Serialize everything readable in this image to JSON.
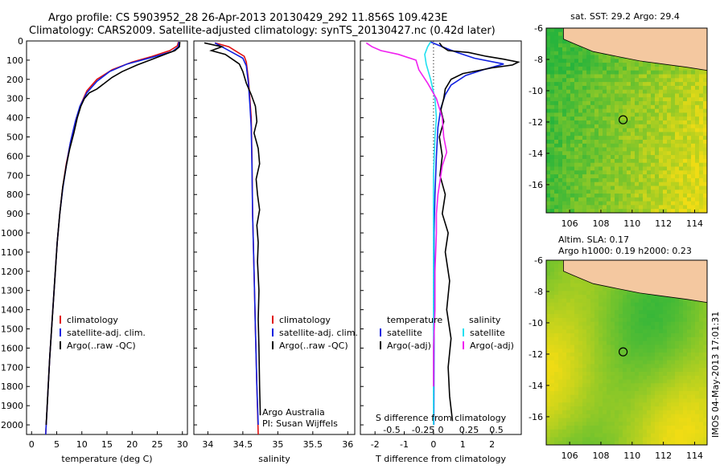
{
  "header": {
    "line1": "Argo profile: CS 5903952_28 26-Apr-2013 20130429_292 11.856S 109.423E",
    "line2": "Climatology: CARS2009. Satellite-adjusted climatology: synTS_20130427.nc (0.42d later)"
  },
  "side_note": "IMOS 04-May-2013 17:01:31",
  "colors": {
    "clim": "#e01010",
    "sat": "#1020e0",
    "argo": "#000000",
    "cyan": "#20e0f0",
    "magenta": "#f020f0",
    "land": "#f4c8a0"
  },
  "chart_data": [
    {
      "type": "line",
      "id": "temperature",
      "xlabel": "temperature (deg C)",
      "ylabel": "",
      "xlim": [
        -1,
        31
      ],
      "ylim": [
        2050,
        0
      ],
      "xticks": [
        0,
        5,
        10,
        15,
        20,
        25,
        30
      ],
      "yticks": [
        0,
        100,
        200,
        300,
        400,
        500,
        600,
        700,
        800,
        900,
        1000,
        1100,
        1200,
        1300,
        1400,
        1500,
        1600,
        1700,
        1800,
        1900,
        2000
      ],
      "legend": [
        "climatology",
        "satellite-adj. clim.",
        "Argo(..raw -QC)"
      ],
      "series": [
        {
          "name": "climatology",
          "color": "clim",
          "points": [
            [
              29.2,
              5
            ],
            [
              29,
              25
            ],
            [
              27.5,
              50
            ],
            [
              24,
              80
            ],
            [
              20,
              110
            ],
            [
              16,
              150
            ],
            [
              13,
              200
            ],
            [
              11,
              260
            ],
            [
              9.8,
              330
            ],
            [
              8.8,
              410
            ],
            [
              7.8,
              520
            ],
            [
              6.9,
              640
            ],
            [
              6.2,
              760
            ],
            [
              5.6,
              900
            ],
            [
              5.1,
              1050
            ],
            [
              4.6,
              1250
            ],
            [
              4.1,
              1450
            ],
            [
              3.6,
              1650
            ],
            [
              3.2,
              1850
            ],
            [
              2.8,
              2050
            ]
          ]
        },
        {
          "name": "satellite-adj. clim.",
          "color": "sat",
          "points": [
            [
              29.3,
              5
            ],
            [
              29.2,
              30
            ],
            [
              28,
              55
            ],
            [
              24,
              85
            ],
            [
              19,
              120
            ],
            [
              15.5,
              160
            ],
            [
              13,
              210
            ],
            [
              11,
              270
            ],
            [
              9.6,
              340
            ],
            [
              8.7,
              420
            ],
            [
              7.7,
              530
            ],
            [
              6.9,
              650
            ],
            [
              6.2,
              770
            ],
            [
              5.6,
              900
            ],
            [
              5.1,
              1050
            ],
            [
              4.6,
              1250
            ],
            [
              4.1,
              1450
            ],
            [
              3.6,
              1650
            ],
            [
              3.2,
              1850
            ],
            [
              2.8,
              2050
            ]
          ]
        },
        {
          "name": "Argo(..raw -QC)",
          "color": "argo",
          "points": [
            [
              29.5,
              5
            ],
            [
              29.4,
              30
            ],
            [
              28.5,
              50
            ],
            [
              27,
              65
            ],
            [
              24,
              95
            ],
            [
              21,
              125
            ],
            [
              18,
              160
            ],
            [
              16,
              190
            ],
            [
              14.5,
              220
            ],
            [
              13,
              250
            ],
            [
              11.5,
              270
            ],
            [
              10.5,
              300
            ],
            [
              9.8,
              340
            ],
            [
              9.1,
              400
            ],
            [
              8.4,
              480
            ],
            [
              7.6,
              560
            ],
            [
              6.9,
              650
            ],
            [
              6.2,
              760
            ],
            [
              5.6,
              900
            ],
            [
              5.1,
              1050
            ],
            [
              4.6,
              1250
            ],
            [
              4.1,
              1450
            ],
            [
              3.6,
              1650
            ],
            [
              3.2,
              1850
            ],
            [
              2.9,
              2000
            ]
          ]
        }
      ]
    },
    {
      "type": "line",
      "id": "salinity",
      "xlabel": "salinity",
      "xlim": [
        33.8,
        36.1
      ],
      "ylim": [
        2050,
        0
      ],
      "xticks": [
        34,
        34.5,
        35,
        35.5,
        36
      ],
      "legend": [
        "climatology",
        "satellite-adj. clim.",
        "Argo(..raw -QC)"
      ],
      "annotation": [
        "Argo Australia",
        "PI: Susan Wijffels"
      ],
      "series": [
        {
          "name": "climatology",
          "color": "clim",
          "points": [
            [
              34.1,
              10
            ],
            [
              34.3,
              30
            ],
            [
              34.43,
              60
            ],
            [
              34.52,
              80
            ],
            [
              34.55,
              110
            ],
            [
              34.58,
              200
            ],
            [
              34.6,
              300
            ],
            [
              34.62,
              400
            ],
            [
              34.63,
              600
            ],
            [
              34.64,
              900
            ],
            [
              34.66,
              1200
            ],
            [
              34.68,
              1500
            ],
            [
              34.7,
              1800
            ],
            [
              34.72,
              2050
            ]
          ]
        },
        {
          "name": "satellite-adj. clim.",
          "color": "sat",
          "points": [
            [
              34.1,
              10
            ],
            [
              34.25,
              40
            ],
            [
              34.4,
              70
            ],
            [
              34.5,
              90
            ],
            [
              34.55,
              130
            ],
            [
              34.58,
              220
            ],
            [
              34.6,
              330
            ],
            [
              34.62,
              450
            ],
            [
              34.63,
              650
            ],
            [
              34.64,
              900
            ],
            [
              34.66,
              1200
            ],
            [
              34.68,
              1500
            ],
            [
              34.7,
              1800
            ],
            [
              34.72,
              2000
            ]
          ]
        },
        {
          "name": "Argo(..raw -QC)",
          "color": "argo",
          "points": [
            [
              33.95,
              10
            ],
            [
              34.2,
              30
            ],
            [
              34.05,
              50
            ],
            [
              34.25,
              70
            ],
            [
              34.35,
              95
            ],
            [
              34.45,
              120
            ],
            [
              34.5,
              160
            ],
            [
              34.55,
              220
            ],
            [
              34.62,
              280
            ],
            [
              34.68,
              340
            ],
            [
              34.7,
              420
            ],
            [
              34.66,
              480
            ],
            [
              34.72,
              560
            ],
            [
              34.74,
              640
            ],
            [
              34.69,
              720
            ],
            [
              34.71,
              800
            ],
            [
              34.74,
              880
            ],
            [
              34.7,
              960
            ],
            [
              34.72,
              1050
            ],
            [
              34.71,
              1150
            ],
            [
              34.73,
              1300
            ],
            [
              34.72,
              1450
            ],
            [
              34.73,
              1600
            ],
            [
              34.74,
              1800
            ],
            [
              34.75,
              1950
            ]
          ]
        }
      ]
    },
    {
      "type": "line",
      "id": "difference",
      "xlabel": "T difference from climatology",
      "xlabel_top": "S difference from climatology",
      "xlim": [
        -2.5,
        3
      ],
      "ylim": [
        2050,
        0
      ],
      "xticks": [
        -2,
        -1,
        0,
        1,
        2
      ],
      "xticks_top": [
        "-0.5",
        "-0.25",
        "0",
        "0.25",
        "0.5"
      ],
      "legend_title_left": "temperature",
      "legend_title_right": "salinity",
      "legend": [
        "satellite",
        "Argo(-adj)",
        "satellite",
        "Argo(-adj)"
      ],
      "series": [
        {
          "name": "satellite",
          "color": "sat",
          "points": [
            [
              -0.1,
              5
            ],
            [
              0.3,
              30
            ],
            [
              0.8,
              60
            ],
            [
              1.4,
              90
            ],
            [
              2.4,
              120
            ],
            [
              1.7,
              150
            ],
            [
              1.1,
              180
            ],
            [
              0.6,
              230
            ],
            [
              0.4,
              280
            ],
            [
              0.25,
              350
            ],
            [
              0.15,
              450
            ],
            [
              0.1,
              600
            ],
            [
              0.05,
              800
            ],
            [
              0.02,
              1000
            ],
            [
              0.02,
              1500
            ],
            [
              0.01,
              2000
            ]
          ]
        },
        {
          "name": "Argo(-adj)",
          "color": "argo",
          "points": [
            [
              0.2,
              10
            ],
            [
              0.3,
              30
            ],
            [
              0.5,
              50
            ],
            [
              1.2,
              60
            ],
            [
              1.8,
              80
            ],
            [
              2.4,
              95
            ],
            [
              2.9,
              110
            ],
            [
              2.7,
              125
            ],
            [
              2,
              140
            ],
            [
              1,
              170
            ],
            [
              0.6,
              200
            ],
            [
              0.4,
              250
            ],
            [
              0.35,
              300
            ],
            [
              0.25,
              360
            ],
            [
              0.35,
              420
            ],
            [
              0.2,
              500
            ],
            [
              0.3,
              600
            ],
            [
              0.22,
              700
            ],
            [
              0.4,
              800
            ],
            [
              0.3,
              900
            ],
            [
              0.5,
              1000
            ],
            [
              0.4,
              1100
            ],
            [
              0.55,
              1250
            ],
            [
              0.45,
              1400
            ],
            [
              0.6,
              1550
            ],
            [
              0.5,
              1700
            ],
            [
              0.55,
              1850
            ],
            [
              0.65,
              1980
            ]
          ]
        },
        {
          "name": "satellite",
          "color": "cyan",
          "points": [
            [
              -0.1,
              5
            ],
            [
              -0.2,
              30
            ],
            [
              -0.3,
              70
            ],
            [
              -0.25,
              120
            ],
            [
              -0.1,
              200
            ],
            [
              0.05,
              300
            ],
            [
              0.1,
              400
            ],
            [
              0.05,
              500
            ],
            [
              0,
              700
            ],
            [
              0,
              1000
            ],
            [
              0,
              1500
            ],
            [
              0,
              2000
            ]
          ]
        },
        {
          "name": "Argo(-adj)",
          "color": "magenta",
          "points": [
            [
              -2.3,
              10
            ],
            [
              -2.1,
              30
            ],
            [
              -1.8,
              50
            ],
            [
              -1.2,
              70
            ],
            [
              -0.6,
              100
            ],
            [
              -0.5,
              150
            ],
            [
              -0.2,
              220
            ],
            [
              0.1,
              300
            ],
            [
              0.3,
              400
            ],
            [
              0.35,
              500
            ],
            [
              0.45,
              580
            ],
            [
              0.3,
              650
            ],
            [
              0.25,
              700
            ],
            [
              0.15,
              800
            ],
            [
              0.1,
              900
            ],
            [
              0.1,
              1000
            ],
            [
              0.05,
              1200
            ],
            [
              0.05,
              1400
            ],
            [
              0,
              1600
            ],
            [
              0,
              1800
            ]
          ]
        }
      ]
    },
    {
      "type": "heatmap",
      "id": "sst_map",
      "title": "sat. SST: 29.2 Argo: 29.4",
      "xlim": [
        104.5,
        114.8
      ],
      "ylim": [
        -17.8,
        -6
      ],
      "xticks": [
        106,
        108,
        110,
        112,
        114
      ],
      "yticks": [
        -6,
        -8,
        -10,
        -12,
        -14,
        -16
      ],
      "marker": [
        109.423,
        -11.856
      ]
    },
    {
      "type": "heatmap",
      "id": "sla_map",
      "title": "Altim. SLA: 0.17",
      "subtitle": "Argo h1000: 0.19 h2000: 0.23",
      "xlim": [
        104.5,
        114.8
      ],
      "ylim": [
        -17.8,
        -6
      ],
      "xticks": [
        106,
        108,
        110,
        112,
        114
      ],
      "yticks": [
        -6,
        -8,
        -10,
        -12,
        -14,
        -16
      ],
      "marker": [
        109.423,
        -11.856
      ]
    }
  ]
}
